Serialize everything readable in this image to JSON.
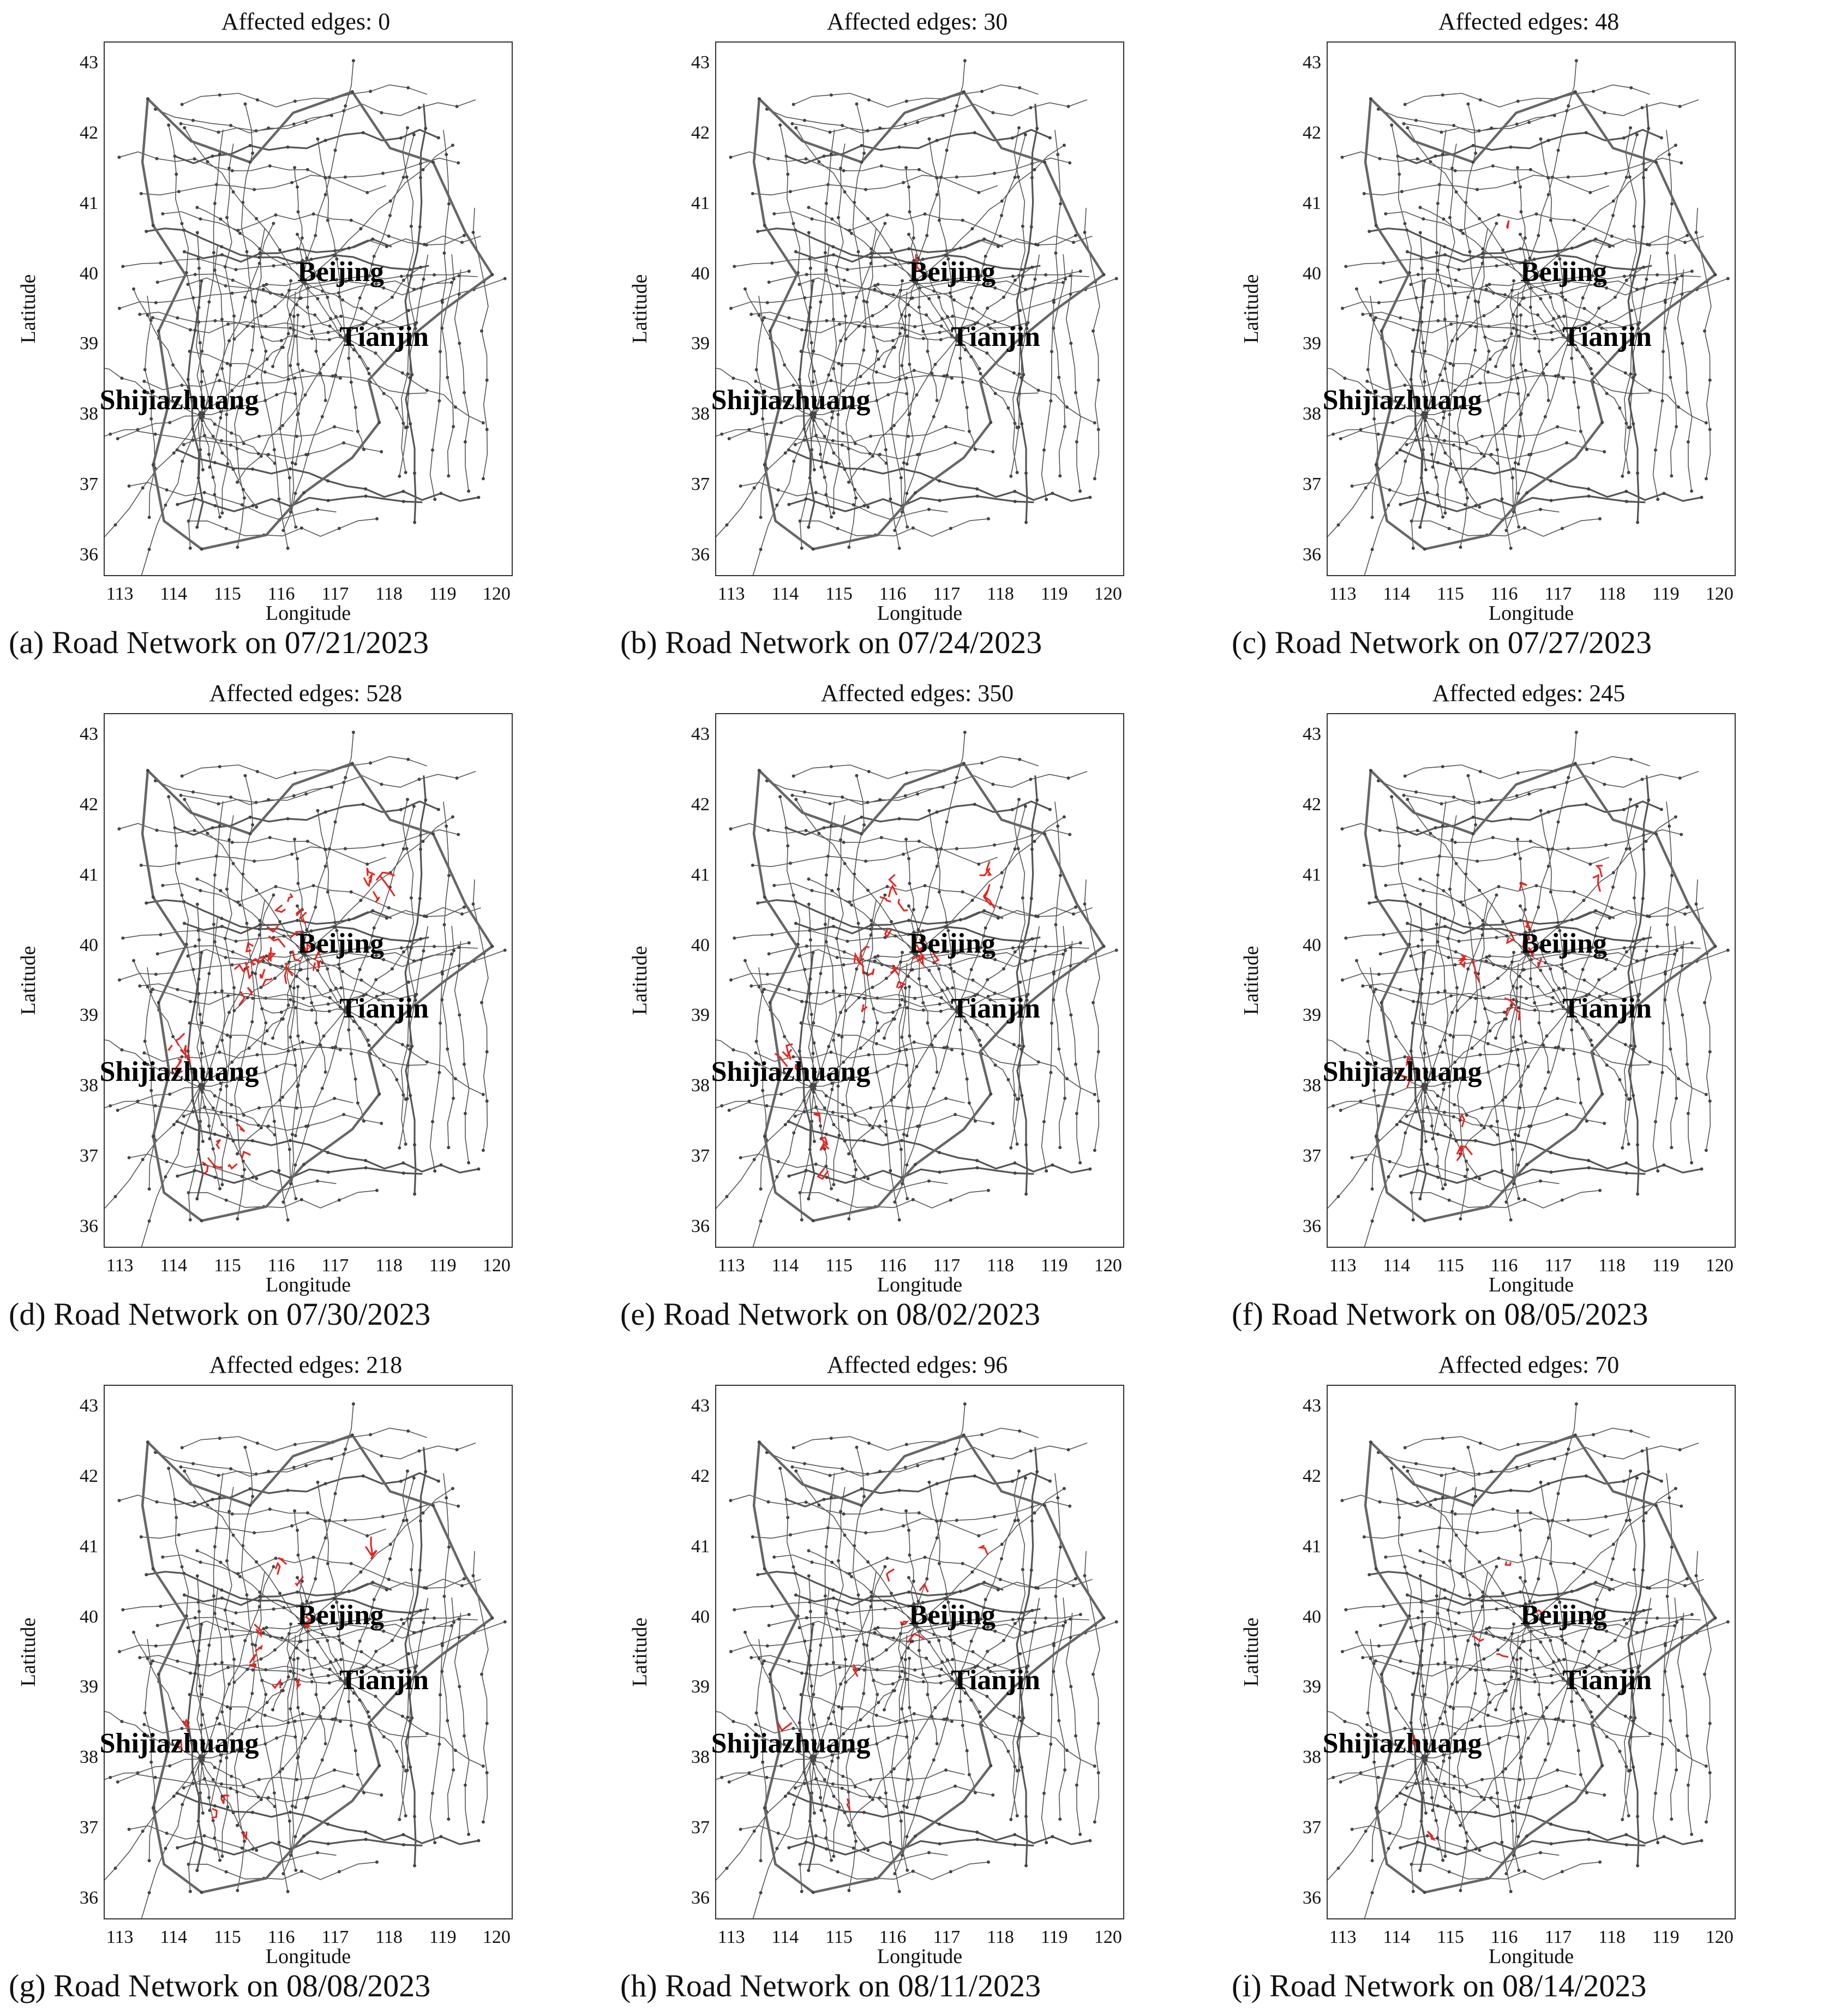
{
  "axes": {
    "xlabel": "Longitude",
    "ylabel": "Latitude",
    "xticks": [
      "113",
      "114",
      "115",
      "116",
      "117",
      "118",
      "119",
      "120"
    ],
    "yticks": [
      "43",
      "42",
      "41",
      "40",
      "39",
      "38",
      "37",
      "36"
    ],
    "xlim": [
      112.7,
      120.3
    ],
    "ylim": [
      35.7,
      43.3
    ]
  },
  "colors": {
    "road": "#555555",
    "highway": "#666666",
    "affected": "#e8231f",
    "background": "#ffffff"
  },
  "cities": [
    {
      "name": "Beijing",
      "lon": 116.4,
      "lat": 39.9
    },
    {
      "name": "Tianjin",
      "lon": 117.2,
      "lat": 39.1
    },
    {
      "name": "Shijiazhuang",
      "lon": 114.5,
      "lat": 38.0
    }
  ],
  "panels": [
    {
      "title": "Affected edges: 0",
      "affected_edges": 0,
      "caption": "(a) Road Network on 07/21/2023"
    },
    {
      "title": "Affected edges: 30",
      "affected_edges": 30,
      "caption": "(b) Road Network on 07/24/2023"
    },
    {
      "title": "Affected edges: 48",
      "affected_edges": 48,
      "caption": "(c) Road Network on 07/27/2023"
    },
    {
      "title": "Affected edges: 528",
      "affected_edges": 528,
      "caption": "(d) Road Network on 07/30/2023"
    },
    {
      "title": "Affected edges: 350",
      "affected_edges": 350,
      "caption": "(e) Road Network on 08/02/2023"
    },
    {
      "title": "Affected edges: 245",
      "affected_edges": 245,
      "caption": "(f) Road Network on 08/05/2023"
    },
    {
      "title": "Affected edges: 218",
      "affected_edges": 218,
      "caption": "(g) Road Network on 08/08/2023"
    },
    {
      "title": "Affected edges: 96",
      "affected_edges": 96,
      "caption": "(h) Road Network on 08/11/2023"
    },
    {
      "title": "Affected edges: 70",
      "affected_edges": 70,
      "caption": "(i) Road Network on 08/14/2023"
    }
  ]
}
